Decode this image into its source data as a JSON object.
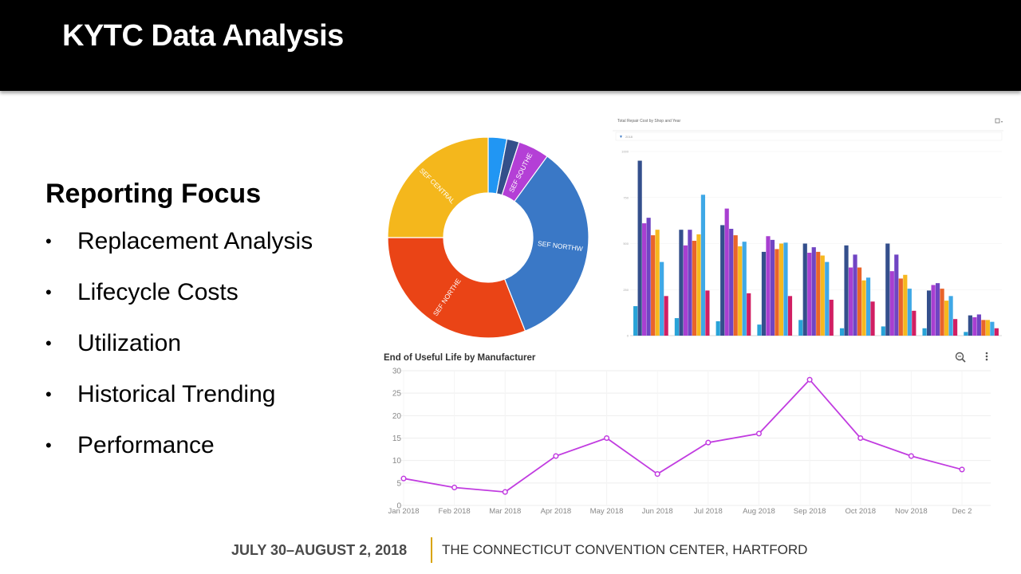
{
  "slide": {
    "title": "KYTC Data Analysis",
    "focus_heading": "Reporting Focus",
    "focus_items": [
      "Replacement Analysis",
      "Lifecycle Costs",
      "Utilization",
      "Historical Trending",
      "Performance"
    ],
    "footer_dates": "JULY 30–AUGUST 2, 2018",
    "footer_venue": "THE CONNECTICUT CONVENTION CENTER, HARTFORD",
    "accent_color": "#d9a400"
  },
  "chart_data": [
    {
      "type": "pie",
      "donut": true,
      "labels": [
        "",
        "",
        "SEF SOUTHE",
        "SEF NORTHW",
        "SEF NORTHE",
        "SEF CENTRAL"
      ],
      "values": [
        3,
        2,
        5,
        34,
        31,
        25
      ],
      "colors": [
        "#2196f3",
        "#34508a",
        "#b43fd6",
        "#3a78c6",
        "#ea4416",
        "#f4b71c"
      ]
    },
    {
      "type": "bar",
      "title": "Total Repair Cost by Shop and Year",
      "filter_label": "2018",
      "categories": [
        "",
        "",
        "",
        "",
        "",
        "",
        "",
        "",
        ""
      ],
      "ylim": [
        0,
        1000
      ],
      "series_colors": [
        "#29a3d8",
        "#344f8c",
        "#a83fd1",
        "#7045c3",
        "#e9642a",
        "#f6b81f",
        "#3fa8e6",
        "#d11f63"
      ],
      "series": [
        {
          "values": [
            160,
            95,
            78,
            60,
            85,
            40,
            50,
            40,
            20
          ]
        },
        {
          "values": [
            950,
            575,
            600,
            455,
            500,
            490,
            500,
            245,
            110
          ]
        },
        {
          "values": [
            610,
            490,
            690,
            540,
            450,
            370,
            350,
            275,
            100
          ]
        },
        {
          "values": [
            640,
            575,
            580,
            520,
            480,
            440,
            440,
            285,
            115
          ]
        },
        {
          "values": [
            545,
            515,
            545,
            470,
            455,
            370,
            310,
            255,
            85
          ]
        },
        {
          "values": [
            575,
            550,
            485,
            500,
            435,
            300,
            330,
            190,
            85
          ]
        },
        {
          "values": [
            400,
            765,
            510,
            505,
            400,
            315,
            255,
            215,
            75
          ]
        },
        {
          "values": [
            215,
            245,
            230,
            215,
            195,
            185,
            135,
            90,
            40
          ]
        }
      ]
    },
    {
      "type": "line",
      "title": "End of Useful Life by Manufacturer",
      "categories": [
        "Jan 2018",
        "Feb 2018",
        "Mar 2018",
        "Apr 2018",
        "May 2018",
        "Jun 2018",
        "Jul 2018",
        "Aug 2018",
        "Sep 2018",
        "Oct 2018",
        "Nov 2018",
        "Dec 2"
      ],
      "values": [
        6,
        4,
        3,
        11,
        15,
        7,
        14,
        16,
        28,
        15,
        11,
        8
      ],
      "yticks": [
        0,
        5,
        10,
        15,
        20,
        25,
        30
      ],
      "ylim": [
        0,
        30
      ],
      "color": "#c13ce0",
      "grid": true,
      "icons": [
        "zoom-icon",
        "more-options-icon"
      ]
    }
  ]
}
